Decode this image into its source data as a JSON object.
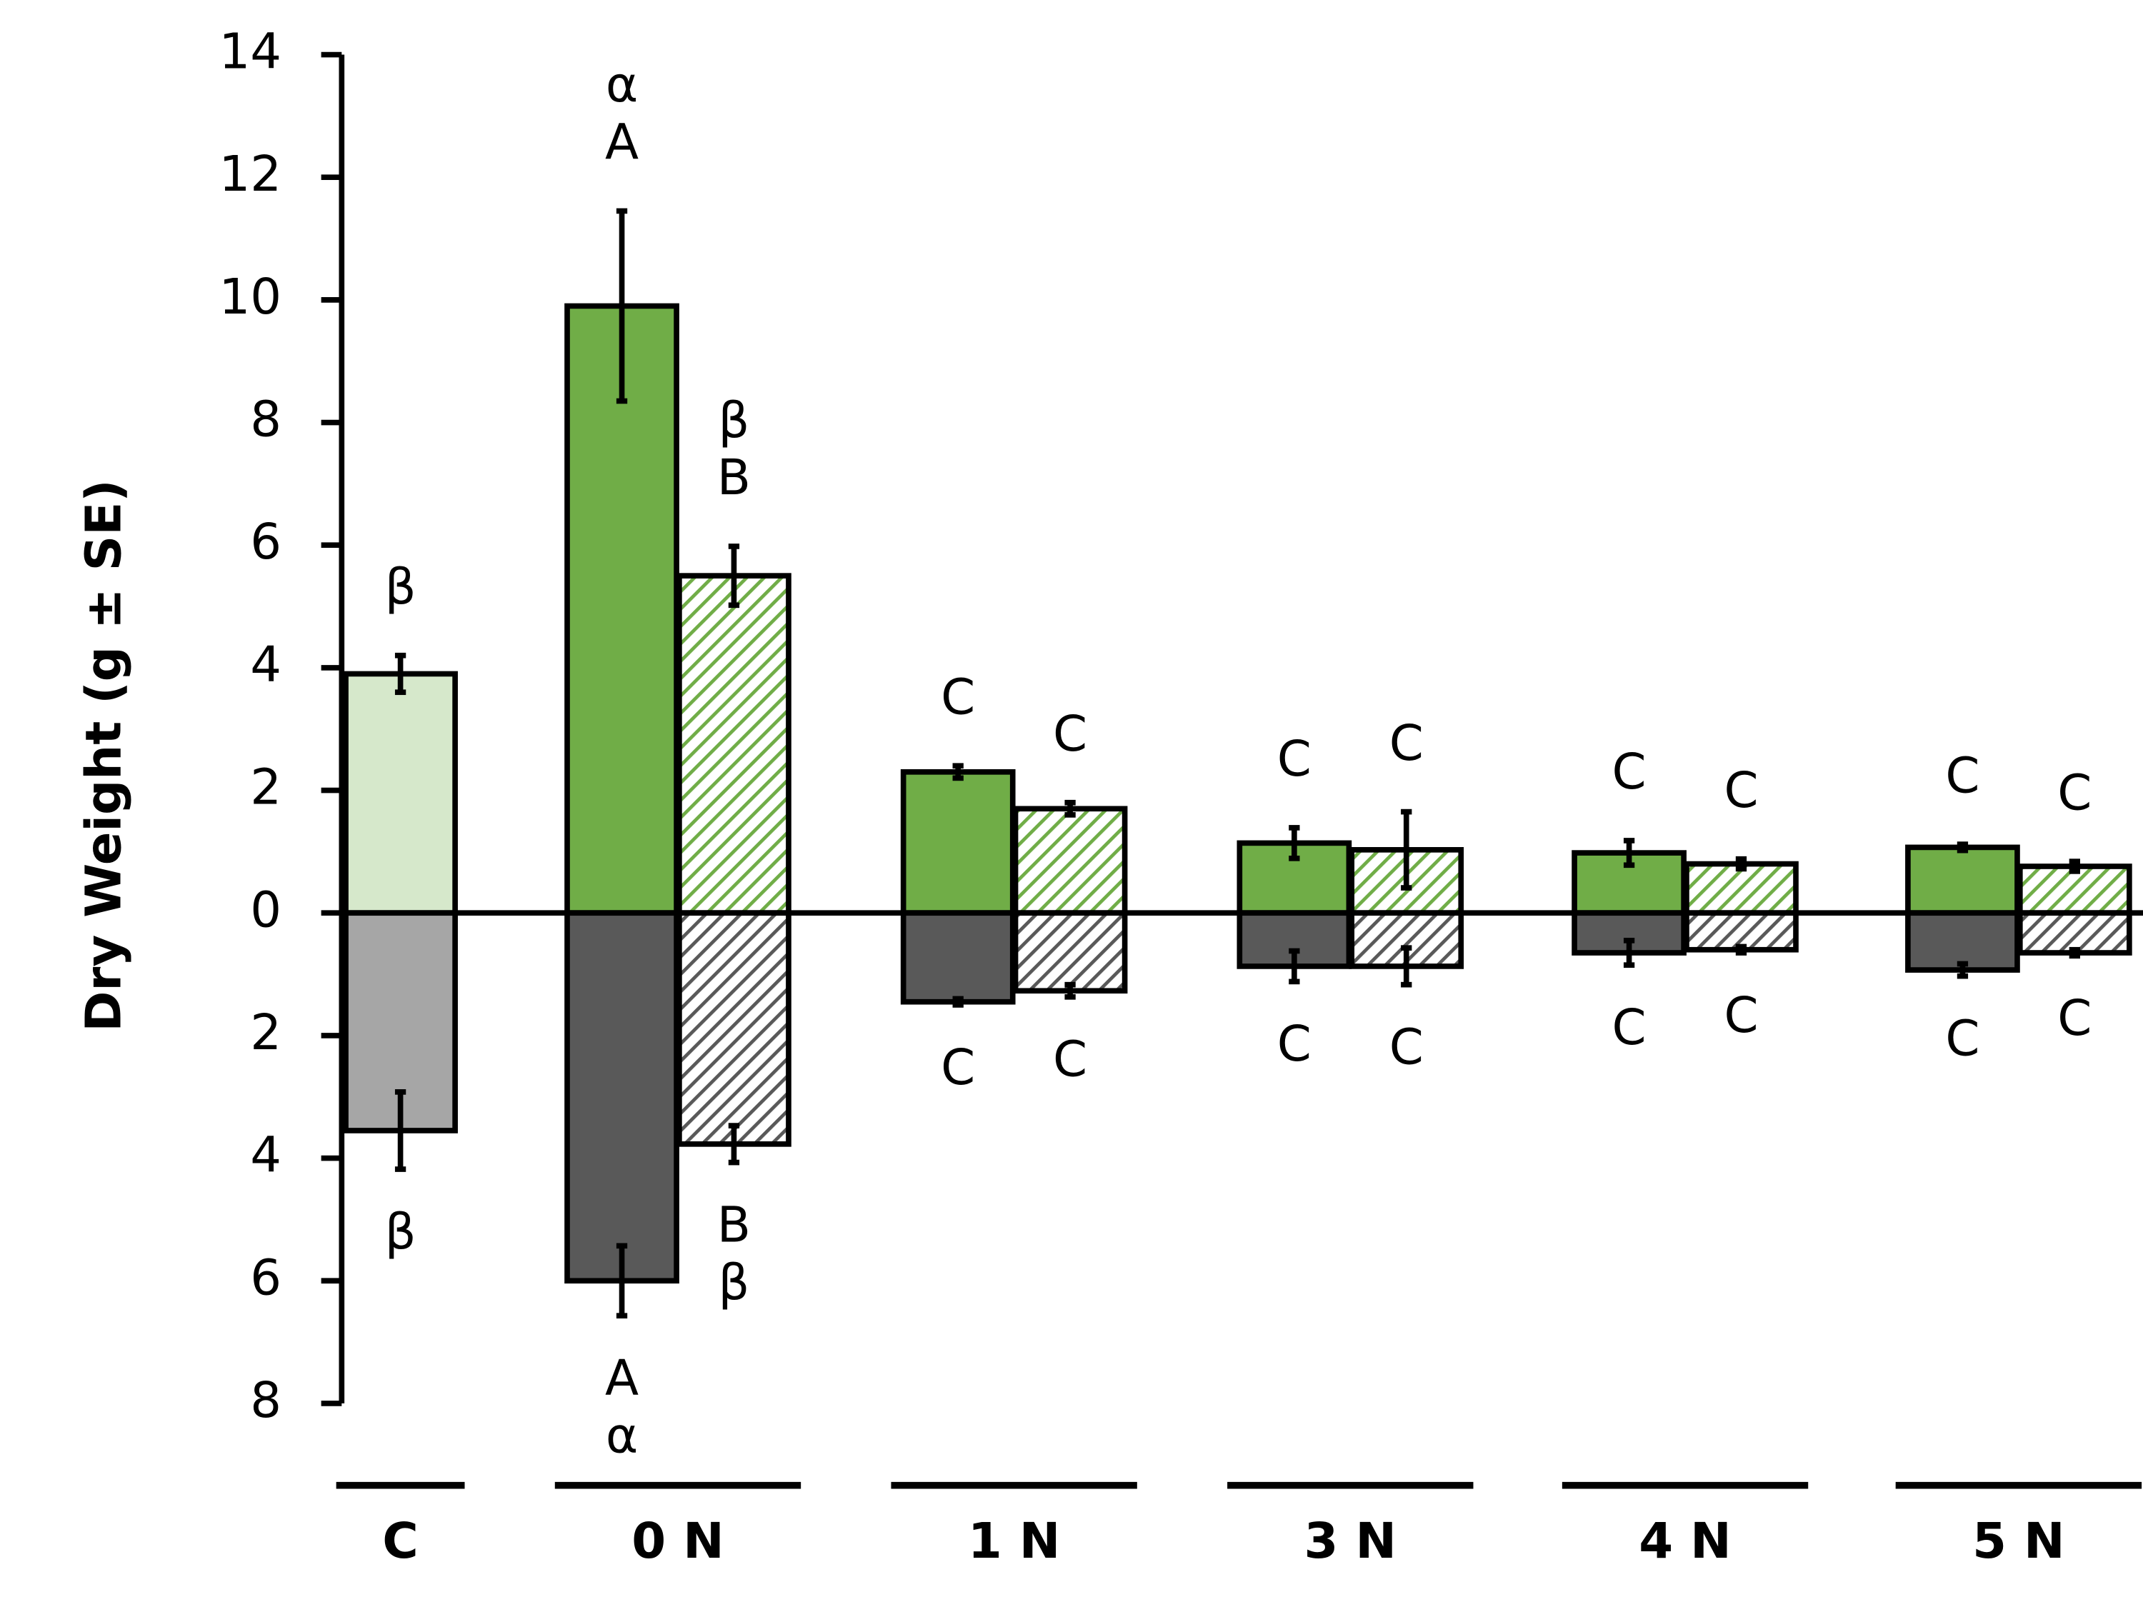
{
  "chart_data": {
    "type": "diverging-bar",
    "y_label": "Dry Weight (g ± SE)",
    "categories": [
      "C",
      "0 N",
      "1 N",
      "3 N",
      "4 N",
      "5 N"
    ],
    "ylim": [
      -8,
      14
    ],
    "yticks": [
      {
        "value": -8,
        "label": "8"
      },
      {
        "value": -6,
        "label": "6"
      },
      {
        "value": -4,
        "label": "4"
      },
      {
        "value": -2,
        "label": "2"
      },
      0,
      2,
      4,
      6,
      8,
      10,
      12,
      14
    ],
    "series": [
      {
        "slot": "left",
        "hatch": false,
        "colors": [
          "#d6e8cb",
          "#70ad47",
          "#70ad47",
          "#70ad47",
          "#70ad47",
          "#70ad47"
        ],
        "values": [
          3.9,
          9.9,
          2.3,
          1.14,
          0.98,
          1.07
        ],
        "errors": [
          0.3,
          1.55,
          0.1,
          0.25,
          0.2,
          0.05
        ],
        "letters": [
          [
            "β"
          ],
          [
            "α",
            "A"
          ],
          [
            "C"
          ],
          [
            "C"
          ],
          [
            "C"
          ],
          [
            "C"
          ]
        ]
      },
      {
        "slot": "right",
        "hatch": true,
        "color": "#70ad47",
        "values": [
          null,
          5.5,
          1.7,
          1.03,
          0.8,
          0.76
        ],
        "errors": [
          null,
          0.48,
          0.1,
          0.62,
          0.08,
          0.08
        ],
        "letters": [
          null,
          [
            "β",
            "B"
          ],
          [
            "C"
          ],
          [
            "C"
          ],
          [
            "C"
          ],
          [
            "C"
          ]
        ]
      },
      {
        "slot": "left",
        "hatch": false,
        "colors": [
          "#a6a6a6",
          "#595959",
          "#595959",
          "#595959",
          "#595959",
          "#595959"
        ],
        "values": [
          -3.55,
          -6.0,
          -1.45,
          -0.87,
          -0.65,
          -0.93
        ],
        "errors": [
          0.63,
          0.57,
          0.05,
          0.25,
          0.2,
          0.1
        ],
        "letters": [
          [
            "β"
          ],
          [
            "A",
            "α"
          ],
          [
            "C"
          ],
          [
            "C"
          ],
          [
            "C"
          ],
          [
            "C"
          ]
        ]
      },
      {
        "slot": "right",
        "hatch": true,
        "color": "#595959",
        "values": [
          null,
          -3.77,
          -1.27,
          -0.87,
          -0.6,
          -0.65
        ],
        "errors": [
          null,
          0.3,
          0.1,
          0.3,
          0.05,
          0.05
        ],
        "letters": [
          null,
          [
            "B",
            "β"
          ],
          [
            "C"
          ],
          [
            "C"
          ],
          [
            "C"
          ],
          [
            "C"
          ]
        ]
      }
    ]
  }
}
